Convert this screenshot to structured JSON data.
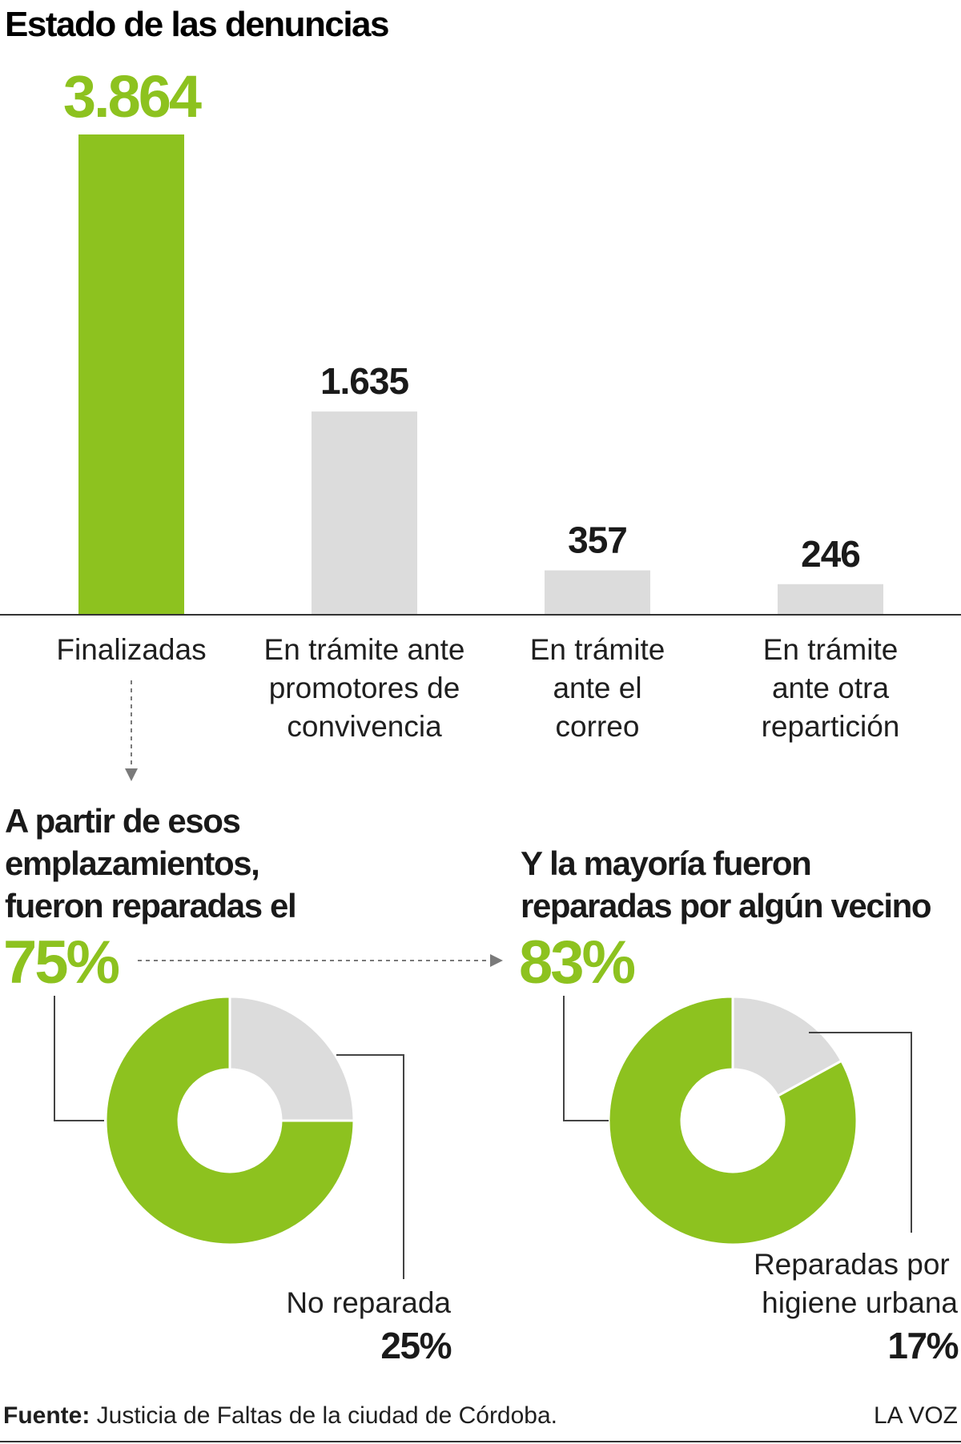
{
  "colors": {
    "accent": "#8dc21f",
    "neutral": "#dcdcdc",
    "text": "#1a1a1a",
    "guide": "#444444"
  },
  "chart_data": [
    {
      "type": "bar",
      "title": "Estado de las denuncias",
      "categories": [
        "Finalizadas",
        "En trámite ante promotores de convivencia",
        "En trámite ante el correo",
        "En trámite ante otra repartición"
      ],
      "category_lines": [
        [
          "Finalizadas"
        ],
        [
          "En trámite ante",
          "promotores de",
          "convivencia"
        ],
        [
          "En trámite",
          "ante el",
          "correo"
        ],
        [
          "En trámite",
          "ante otra",
          "repartición"
        ]
      ],
      "values": [
        3864,
        1635,
        357,
        246
      ],
      "value_labels": [
        "3.864",
        "1.635",
        "357",
        "246"
      ],
      "highlight": [
        true,
        false,
        false,
        false
      ],
      "ylim": [
        0,
        3864
      ],
      "grid": false
    },
    {
      "type": "pie",
      "donut": true,
      "title_lines": [
        "A partir de esos",
        "emplazamientos,",
        "fueron reparadas el"
      ],
      "headline": "75%",
      "slices": [
        {
          "label": "",
          "value": 75,
          "highlight": true
        },
        {
          "label_lines": [
            "No reparada"
          ],
          "value": 25,
          "value_label": "25%",
          "highlight": false
        }
      ]
    },
    {
      "type": "pie",
      "donut": true,
      "title_lines": [
        "Y la mayoría fueron",
        "reparadas por algún vecino"
      ],
      "headline": "83%",
      "slices": [
        {
          "label": "",
          "value": 83,
          "highlight": true
        },
        {
          "label_lines": [
            "Reparadas por",
            "higiene urbana"
          ],
          "value": 17,
          "value_label": "17%",
          "highlight": false
        }
      ]
    }
  ],
  "footer": {
    "source_label": "Fuente:",
    "source_text": " Justicia de Faltas de la ciudad de Córdoba.",
    "brand": "LA VOZ"
  }
}
